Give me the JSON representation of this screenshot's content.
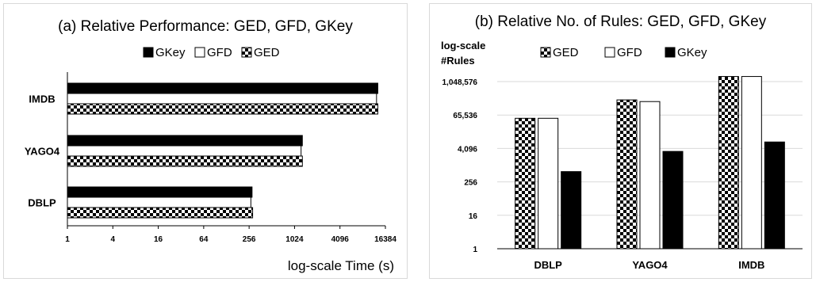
{
  "colors": {
    "gkey": "#000000",
    "gfd": "#ffffff",
    "ged_pattern": "checkerboard",
    "grid": "#d9d9d9",
    "axis": "#000000"
  },
  "chart_data": [
    {
      "type": "bar",
      "orientation": "horizontal",
      "title": "(a) Relative Performance: GED, GFD, GKey",
      "xlabel": "log-scale Time (s)",
      "ylabel": "",
      "x_scale": "log2",
      "xlim": [
        1,
        16384
      ],
      "x_ticks": [
        "1",
        "4",
        "16",
        "64",
        "256",
        "1024",
        "4096",
        "16384"
      ],
      "categories": [
        "IMDB",
        "YAGO4",
        "DBLP"
      ],
      "legend": {
        "position": "top",
        "labels": [
          "GKey",
          "GFD",
          "GED"
        ]
      },
      "series": [
        {
          "name": "GKey",
          "values": [
            13000,
            1300,
            280
          ]
        },
        {
          "name": "GFD",
          "values": [
            12500,
            1250,
            270
          ]
        },
        {
          "name": "GED",
          "values": [
            13000,
            1300,
            285
          ]
        }
      ]
    },
    {
      "type": "bar",
      "orientation": "vertical",
      "title": "(b) Relative No. of Rules: GED, GFD, GKey",
      "ylabel_lines": [
        "log-scale",
        "#Rules"
      ],
      "xlabel": "",
      "y_scale": "log2",
      "ylim": [
        1,
        1048576
      ],
      "y_ticks": [
        "1",
        "16",
        "256",
        "4,096",
        "65,536",
        "1,048,576"
      ],
      "categories": [
        "DBLP",
        "YAGO4",
        "IMDB"
      ],
      "legend": {
        "position": "top",
        "labels": [
          "GED",
          "GFD",
          "GKey"
        ]
      },
      "grid": true,
      "series": [
        {
          "name": "GED",
          "values": [
            50000,
            230000,
            1600000
          ]
        },
        {
          "name": "GFD",
          "values": [
            50000,
            200000,
            1600000
          ]
        },
        {
          "name": "GKey",
          "values": [
            600,
            3200,
            7000
          ]
        }
      ]
    }
  ]
}
